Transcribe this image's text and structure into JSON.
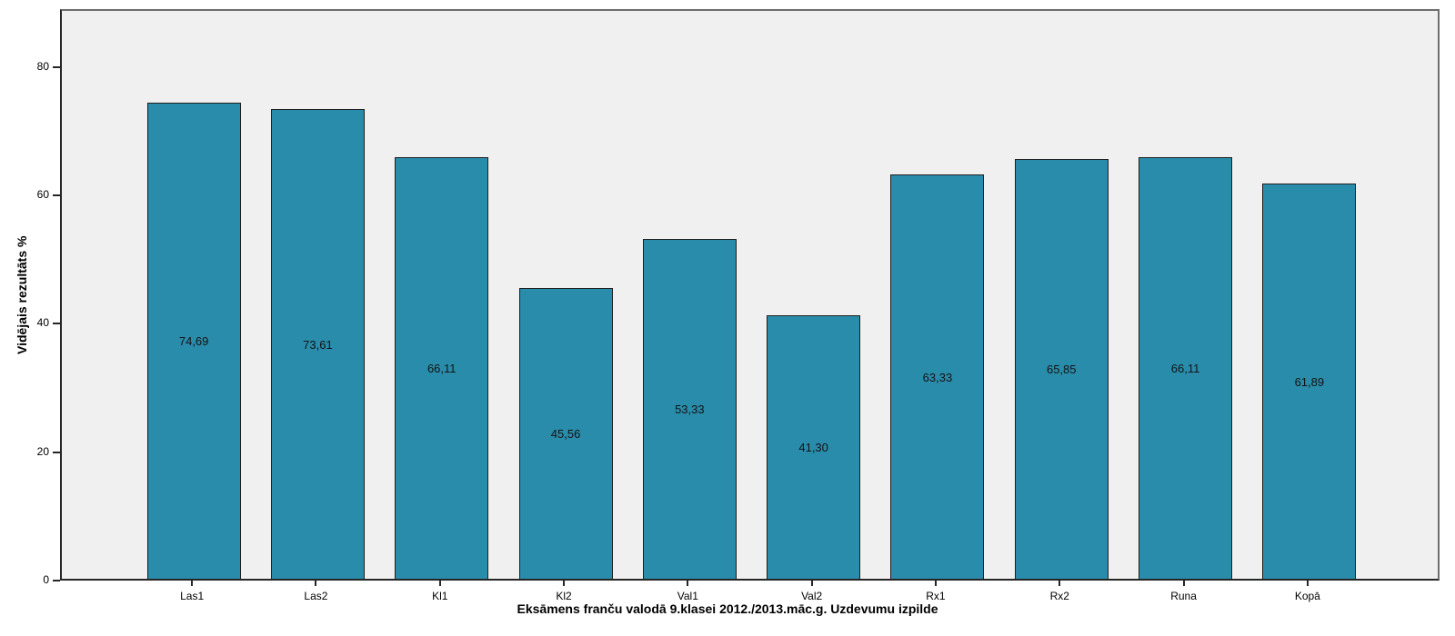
{
  "chart_data": {
    "type": "bar",
    "title": "",
    "xlabel": "Eksāmens franču valodā 9.klasei 2012./2013.māc.g. Uzdevumu izpilde",
    "ylabel": "Vidējais rezultāts %",
    "categories": [
      "Las1",
      "Las2",
      "Kl1",
      "Kl2",
      "Val1",
      "Val2",
      "Rx1",
      "Rx2",
      "Runa",
      "Kopā"
    ],
    "values": [
      74.69,
      73.61,
      66.11,
      45.56,
      53.33,
      41.3,
      63.33,
      65.85,
      66.11,
      61.89
    ],
    "value_labels": [
      "74,69",
      "73,61",
      "66,11",
      "45,56",
      "53,33",
      "41,30",
      "63,33",
      "65,85",
      "66,11",
      "61,89"
    ],
    "value_label_position": "center-of-bar",
    "yticks": [
      0,
      20,
      40,
      60,
      80
    ],
    "ylim": [
      0,
      89
    ],
    "grid": false,
    "legend": null,
    "colors": {
      "bar_fill": "#298CAA",
      "bar_border": "#1F1F1F",
      "plot_background": "#F0F0F0",
      "page_background": "#FFFFFF",
      "axis_line": "#262626",
      "panel_border": "#6E6E6E",
      "text": "#000000"
    }
  }
}
